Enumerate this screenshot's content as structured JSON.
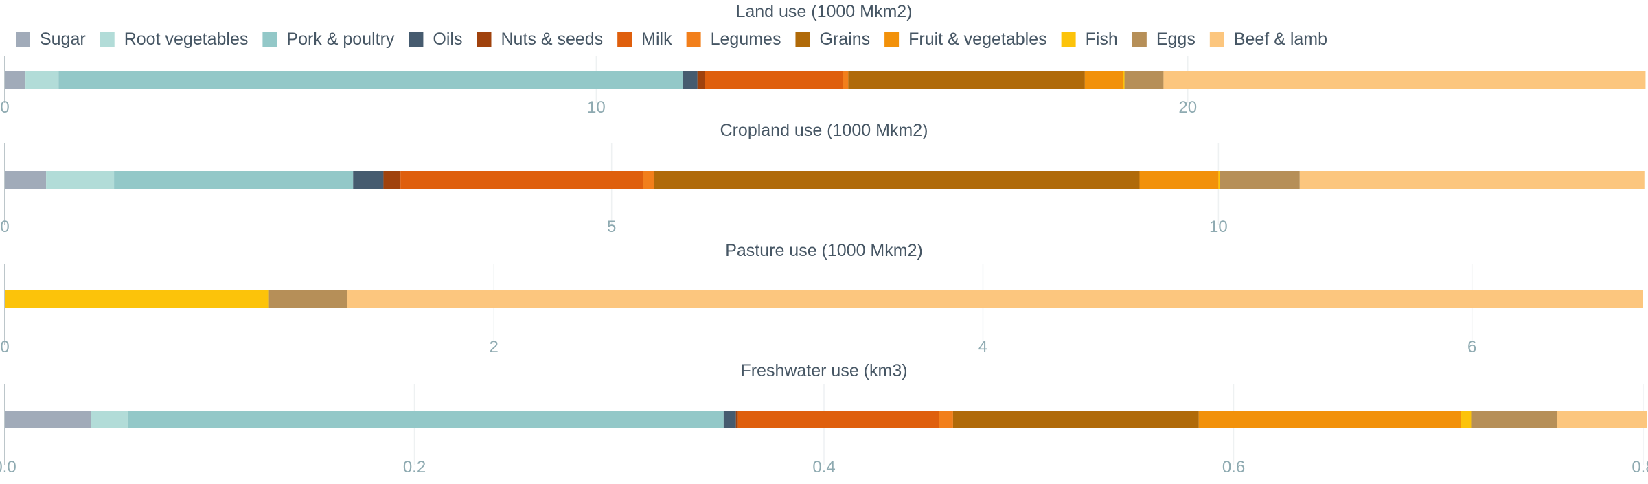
{
  "chart_data": {
    "type": "bar",
    "orientation": "horizontal",
    "stacked": true,
    "legend_placement": "top-left",
    "grid": true,
    "legend": [
      {
        "name": "Sugar",
        "color": "#a1abb9"
      },
      {
        "name": "Root vegetables",
        "color": "#b2dcd8"
      },
      {
        "name": "Pork & poultry",
        "color": "#93c8c8"
      },
      {
        "name": "Oils",
        "color": "#465b6f"
      },
      {
        "name": "Nuts & seeds",
        "color": "#a0420d"
      },
      {
        "name": "Milk",
        "color": "#df5f0d"
      },
      {
        "name": "Legumes",
        "color": "#f27f1b"
      },
      {
        "name": "Grains",
        "color": "#b06a09"
      },
      {
        "name": "Fruit & vegetables",
        "color": "#f2910a"
      },
      {
        "name": "Fish",
        "color": "#fcc30a"
      },
      {
        "name": "Eggs",
        "color": "#b68f58"
      },
      {
        "name": "Beef & lamb",
        "color": "#fcc67e"
      }
    ],
    "charts": [
      {
        "title": "Land use (1000 Mkm2)",
        "xlim": [
          0,
          27.7
        ],
        "ticks": [
          0,
          10,
          20
        ],
        "tick_labels": [
          "0",
          "10",
          "20"
        ],
        "values": {
          "Sugar": 0.35,
          "Root vegetables": 0.56,
          "Pork & poultry": 10.55,
          "Oils": 0.25,
          "Nuts & seeds": 0.12,
          "Milk": 2.34,
          "Legumes": 0.09,
          "Grains": 4.0,
          "Fruit & vegetables": 0.65,
          "Fish": 0.02,
          "Eggs": 0.66,
          "Beef & lamb": 8.15
        }
      },
      {
        "title": "Cropland use (1000 Mkm2)",
        "xlim": [
          0,
          13.5
        ],
        "ticks": [
          0,
          5,
          10
        ],
        "tick_labels": [
          "0",
          "5",
          "10"
        ],
        "values": {
          "Sugar": 0.34,
          "Root vegetables": 0.56,
          "Pork & poultry": 1.97,
          "Oils": 0.25,
          "Nuts & seeds": 0.14,
          "Milk": 2.0,
          "Legumes": 0.09,
          "Grains": 4.0,
          "Fruit & vegetables": 0.65,
          "Fish": 0.01,
          "Eggs": 0.66,
          "Beef & lamb": 2.84
        }
      },
      {
        "title": "Pasture use (1000 Mkm2)",
        "xlim": [
          0,
          6.7
        ],
        "ticks": [
          0,
          2,
          4,
          6
        ],
        "tick_labels": [
          "0",
          "2",
          "4",
          "6"
        ],
        "values": {
          "Sugar": 0,
          "Root vegetables": 0,
          "Pork & poultry": 0,
          "Oils": 0,
          "Nuts & seeds": 0,
          "Milk": 0,
          "Legumes": 0,
          "Grains": 0,
          "Fruit & vegetables": 0,
          "Fish": 1.08,
          "Eggs": 0.32,
          "Beef & lamb": 5.3
        }
      },
      {
        "title": "Freshwater use (km3)",
        "xlim": [
          0,
          0.8
        ],
        "ticks": [
          0,
          0.2,
          0.4,
          0.6,
          0.8
        ],
        "tick_labels": [
          "0.0",
          "0.2",
          "0.4",
          "0.6",
          "0.8"
        ],
        "values": {
          "Sugar": 0.042,
          "Root vegetables": 0.018,
          "Pork & poultry": 0.291,
          "Oils": 0.006,
          "Nuts & seeds": 0.001,
          "Milk": 0.098,
          "Legumes": 0.007,
          "Grains": 0.12,
          "Fruit & vegetables": 0.128,
          "Fish": 0.005,
          "Eggs": 0.042,
          "Beef & lamb": 0.044
        }
      }
    ]
  }
}
